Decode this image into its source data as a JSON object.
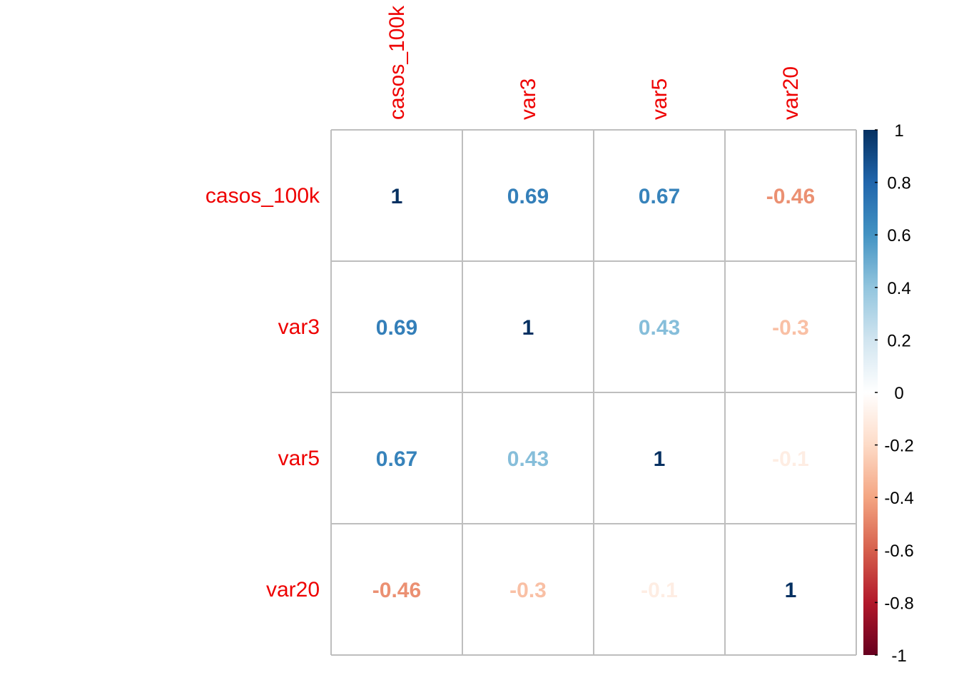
{
  "chart_data": {
    "type": "heatmap",
    "method": "number",
    "variables": [
      "casos_100k",
      "var3",
      "var5",
      "var20"
    ],
    "matrix": [
      [
        1,
        0.69,
        0.67,
        -0.46
      ],
      [
        0.69,
        1,
        0.43,
        -0.3
      ],
      [
        0.67,
        0.43,
        1,
        -0.1
      ],
      [
        -0.46,
        -0.3,
        -0.1,
        1
      ]
    ],
    "colorbar": {
      "range": [
        -1,
        1
      ],
      "ticks": [
        "1",
        "0.8",
        "0.6",
        "0.4",
        "0.2",
        "0",
        "-0.2",
        "-0.4",
        "-0.6",
        "-0.8",
        "-1"
      ],
      "tick_values": [
        1,
        0.8,
        0.6,
        0.4,
        0.2,
        0,
        -0.2,
        -0.4,
        -0.6,
        -0.8,
        -1
      ]
    },
    "label_color": "#ee0000",
    "grid_color": "#bebebe",
    "palette": [
      "#67001f",
      "#b2182b",
      "#d6604d",
      "#f4a582",
      "#fddbc7",
      "#ffffff",
      "#d1e5f0",
      "#92c5de",
      "#4393c3",
      "#2166ac",
      "#053061"
    ]
  }
}
